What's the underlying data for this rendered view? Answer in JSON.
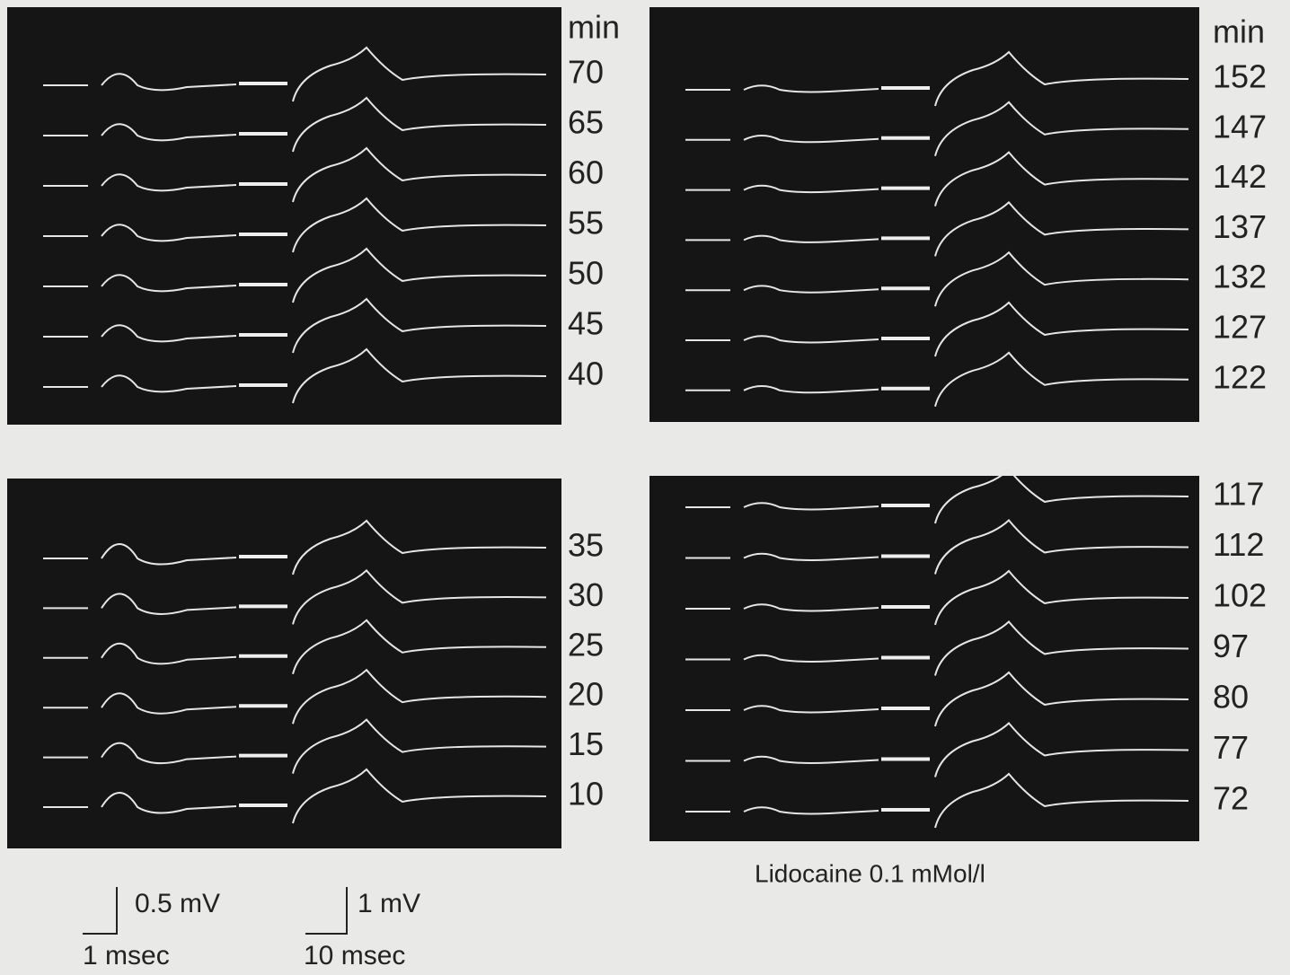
{
  "panels": [
    {
      "unit": "min",
      "labels": [
        70,
        65,
        60,
        55,
        50,
        45,
        40
      ]
    },
    {
      "unit": "min",
      "labels": [
        152,
        147,
        142,
        137,
        132,
        127,
        122
      ]
    },
    {
      "labels": [
        35,
        30,
        25,
        20,
        15,
        10
      ]
    },
    {
      "labels": [
        117,
        112,
        102,
        97,
        80,
        77,
        72
      ]
    }
  ],
  "caption": "Lidocaine 0.1 mMol/l",
  "scale_bars": [
    {
      "amplitude": "0.5 mV",
      "time": "1 msec"
    },
    {
      "amplitude": "1 mV",
      "time": "10 msec"
    }
  ]
}
